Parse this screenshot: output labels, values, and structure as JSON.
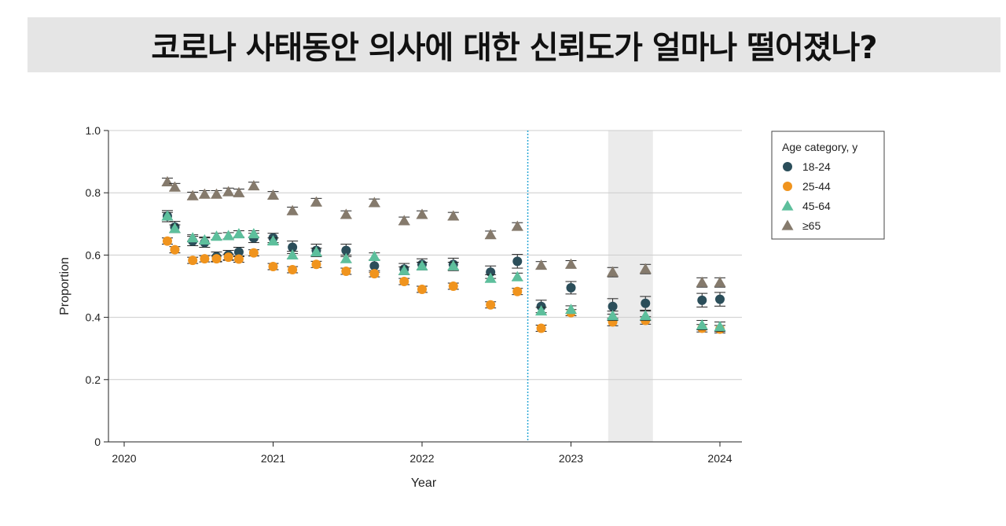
{
  "title": "코로나 사태동안 의사에 대한 신뢰도가 얼마나 떨어졌나?",
  "chart_data": {
    "type": "scatter",
    "xlabel": "Year",
    "ylabel": "Proportion",
    "xlim": [
      2020,
      2024.15
    ],
    "ylim": [
      0,
      1.0
    ],
    "x_ticks": [
      2020,
      2021,
      2022,
      2023,
      2024
    ],
    "x_tick_labels": [
      "2020",
      "2021",
      "2022",
      "2023",
      "2024"
    ],
    "y_ticks": [
      0,
      0.2,
      0.4,
      0.6,
      0.8,
      1.0
    ],
    "y_tick_labels": [
      "0",
      "0.2",
      "0.4",
      "0.6",
      "0.8",
      "1.0"
    ],
    "grid": "horizontal",
    "error_bars": true,
    "vertical_reference_line": 2022.71,
    "shaded_region": [
      2023.25,
      2023.55
    ],
    "legend": {
      "title": "Age category, y",
      "position": "right"
    },
    "series": [
      {
        "name": "18-24",
        "marker": "circle",
        "color": "#2b4e5a",
        "x": [
          2020.29,
          2020.34,
          2020.46,
          2020.54,
          2020.62,
          2020.7,
          2020.77,
          2020.87,
          2021.0,
          2021.13,
          2021.29,
          2021.49,
          2021.68,
          2021.88,
          2022.0,
          2022.21,
          2022.46,
          2022.64,
          2022.8,
          2023.0,
          2023.28,
          2023.5,
          2023.88,
          2024.0
        ],
        "y": [
          0.725,
          0.69,
          0.645,
          0.64,
          0.595,
          0.6,
          0.61,
          0.655,
          0.655,
          0.625,
          0.615,
          0.615,
          0.565,
          0.555,
          0.57,
          0.57,
          0.545,
          0.58,
          0.435,
          0.495,
          0.435,
          0.445,
          0.455,
          0.458
        ],
        "err": [
          0.018,
          0.018,
          0.015,
          0.015,
          0.015,
          0.015,
          0.015,
          0.015,
          0.015,
          0.02,
          0.02,
          0.02,
          0.02,
          0.018,
          0.018,
          0.02,
          0.02,
          0.022,
          0.02,
          0.02,
          0.025,
          0.022,
          0.022,
          0.022
        ]
      },
      {
        "name": "25-44",
        "marker": "circle",
        "color": "#f0941e",
        "x": [
          2020.29,
          2020.34,
          2020.46,
          2020.54,
          2020.62,
          2020.7,
          2020.77,
          2020.87,
          2021.0,
          2021.13,
          2021.29,
          2021.49,
          2021.68,
          2021.88,
          2022.0,
          2022.21,
          2022.46,
          2022.64,
          2022.8,
          2023.0,
          2023.28,
          2023.5,
          2023.88,
          2024.0
        ],
        "y": [
          0.645,
          0.617,
          0.583,
          0.588,
          0.588,
          0.593,
          0.587,
          0.607,
          0.563,
          0.553,
          0.57,
          0.548,
          0.54,
          0.515,
          0.49,
          0.5,
          0.44,
          0.483,
          0.365,
          0.415,
          0.385,
          0.39,
          0.365,
          0.362
        ],
        "err": [
          0.01,
          0.01,
          0.01,
          0.01,
          0.01,
          0.01,
          0.01,
          0.01,
          0.01,
          0.01,
          0.01,
          0.01,
          0.01,
          0.01,
          0.01,
          0.01,
          0.01,
          0.01,
          0.01,
          0.01,
          0.012,
          0.012,
          0.012,
          0.012
        ]
      },
      {
        "name": "45-64",
        "marker": "triangle",
        "color": "#5dbf9c",
        "x": [
          2020.29,
          2020.34,
          2020.46,
          2020.54,
          2020.62,
          2020.7,
          2020.77,
          2020.87,
          2021.0,
          2021.13,
          2021.29,
          2021.49,
          2021.68,
          2021.88,
          2022.0,
          2022.21,
          2022.46,
          2022.64,
          2022.8,
          2023.0,
          2023.28,
          2023.5,
          2023.88,
          2024.0
        ],
        "y": [
          0.725,
          0.685,
          0.655,
          0.648,
          0.66,
          0.662,
          0.668,
          0.668,
          0.645,
          0.6,
          0.61,
          0.588,
          0.595,
          0.55,
          0.565,
          0.565,
          0.525,
          0.53,
          0.42,
          0.425,
          0.405,
          0.405,
          0.375,
          0.37
        ],
        "err": [
          0.012,
          0.012,
          0.01,
          0.01,
          0.01,
          0.01,
          0.01,
          0.01,
          0.01,
          0.012,
          0.012,
          0.012,
          0.012,
          0.012,
          0.012,
          0.012,
          0.012,
          0.012,
          0.012,
          0.012,
          0.015,
          0.015,
          0.015,
          0.015
        ]
      },
      {
        "name": "≥65",
        "marker": "triangle",
        "color": "#857a6c",
        "x": [
          2020.29,
          2020.34,
          2020.46,
          2020.54,
          2020.62,
          2020.7,
          2020.77,
          2020.87,
          2021.0,
          2021.13,
          2021.29,
          2021.49,
          2021.68,
          2021.88,
          2022.0,
          2022.21,
          2022.46,
          2022.64,
          2022.8,
          2023.0,
          2023.28,
          2023.5,
          2023.88,
          2024.0
        ],
        "y": [
          0.835,
          0.818,
          0.79,
          0.795,
          0.795,
          0.803,
          0.8,
          0.822,
          0.792,
          0.742,
          0.77,
          0.73,
          0.768,
          0.71,
          0.73,
          0.725,
          0.665,
          0.692,
          0.567,
          0.57,
          0.545,
          0.555,
          0.512,
          0.512
        ],
        "err": [
          0.012,
          0.012,
          0.012,
          0.012,
          0.012,
          0.012,
          0.012,
          0.012,
          0.012,
          0.012,
          0.012,
          0.012,
          0.012,
          0.012,
          0.012,
          0.012,
          0.012,
          0.012,
          0.012,
          0.012,
          0.015,
          0.015,
          0.015,
          0.015
        ]
      }
    ]
  }
}
